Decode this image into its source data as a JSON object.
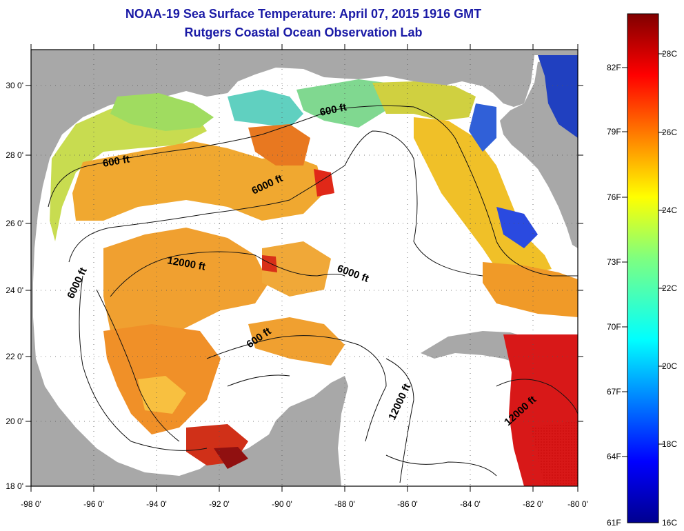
{
  "header": {
    "title": "NOAA-19 Sea Surface Temperature:  April 07, 2015 1916 GMT",
    "subtitle": "Rutgers Coastal Ocean Observation Lab"
  },
  "axes": {
    "x_ticks": [
      "-98 0'",
      "-96 0'",
      "-94 0'",
      "-92 0'",
      "-90 0'",
      "-88 0'",
      "-86 0'",
      "-84 0'",
      "-82 0'",
      "-80 0'"
    ],
    "y_ticks": [
      "30 0'",
      "28 0'",
      "26 0'",
      "24 0'",
      "22 0'",
      "20 0'",
      "18 0'"
    ]
  },
  "colorbar": {
    "fahrenheit": [
      "82F",
      "79F",
      "76F",
      "73F",
      "70F",
      "67F",
      "64F",
      "61F"
    ],
    "celsius": [
      "28C",
      "26C",
      "24C",
      "22C",
      "20C",
      "18C",
      "16C"
    ]
  },
  "contours": {
    "labels": [
      "600 ft",
      "600 ft",
      "6000 ft",
      "12000 ft",
      "6000 ft",
      "6000 ft",
      "600 ft",
      "12000 ft",
      "12000 ft"
    ]
  },
  "colors": {
    "title": "#1a1aa6",
    "land": "#a8a8a8",
    "no_data": "#ffffff"
  }
}
